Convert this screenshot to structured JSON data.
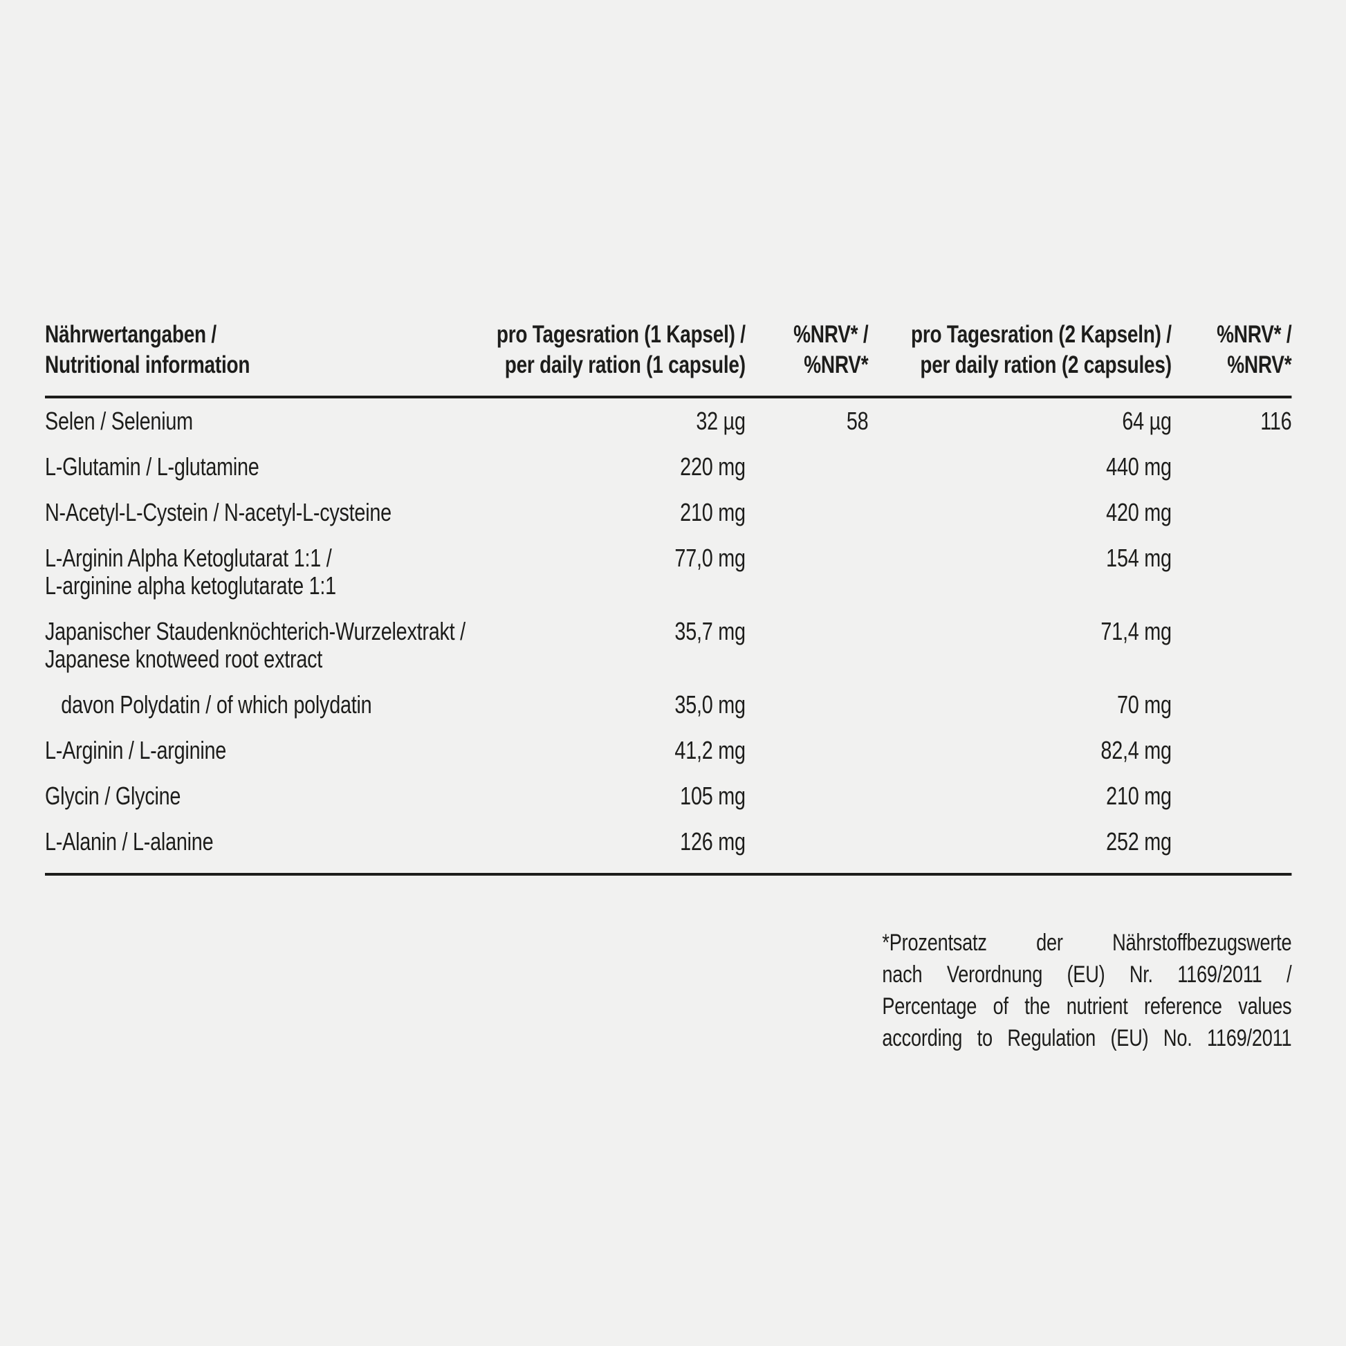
{
  "page": {
    "background_color": "#f1f1f0",
    "text_color": "#1d1d1b"
  },
  "table": {
    "header": {
      "col1": [
        "Nährwertangaben /",
        "Nutritional information"
      ],
      "col2": [
        "pro Tagesration (1 Kapsel) /",
        "per daily ration (1 capsule)"
      ],
      "col3": [
        "%NRV* /",
        "%NRV*"
      ],
      "col4": [
        "pro Tagesration (2 Kapseln) /",
        "per daily ration (2 capsules)"
      ],
      "col5": [
        "%NRV* /",
        "%NRV*"
      ]
    },
    "rows": [
      {
        "label_line1": "Selen / Selenium",
        "label_line2": "",
        "per1": "32 µg",
        "nrv1": "58",
        "per2": "64 µg",
        "nrv2": "116"
      },
      {
        "label_line1": "L-Glutamin / L-glutamine",
        "label_line2": "",
        "per1": "220 mg",
        "nrv1": "",
        "per2": "440 mg",
        "nrv2": ""
      },
      {
        "label_line1": "N-Acetyl-L-Cystein / N-acetyl-L-cysteine",
        "label_line2": "",
        "per1": "210 mg",
        "nrv1": "",
        "per2": "420 mg",
        "nrv2": ""
      },
      {
        "label_line1": "L-Arginin Alpha Ketoglutarat 1:1 /",
        "label_line2": "L-arginine alpha ketoglutarate 1:1",
        "per1": "77,0 mg",
        "nrv1": "",
        "per2": "154 mg",
        "nrv2": ""
      },
      {
        "label_line1": "Japanischer Staudenknöchterich-Wurzelextrakt /",
        "label_line2": "Japanese knotweed root extract",
        "per1": "35,7 mg",
        "nrv1": "",
        "per2": "71,4 mg",
        "nrv2": ""
      },
      {
        "label_line1": "davon Polydatin / of which polydatin",
        "label_line2": "",
        "per1": "35,0 mg",
        "nrv1": "",
        "per2": "70 mg",
        "nrv2": ""
      },
      {
        "label_line1": "L-Arginin / L-arginine",
        "label_line2": "",
        "per1": "41,2 mg",
        "nrv1": "",
        "per2": "82,4 mg",
        "nrv2": ""
      },
      {
        "label_line1": "Glycin / Glycine",
        "label_line2": "",
        "per1": "105 mg",
        "nrv1": "",
        "per2": "210 mg",
        "nrv2": ""
      },
      {
        "label_line1": "L-Alanin / L-alanine",
        "label_line2": "",
        "per1": "126 mg",
        "nrv1": "",
        "per2": "252 mg",
        "nrv2": ""
      }
    ]
  },
  "footnote": {
    "line1": "*Prozentsatz der Nährstoffbezugswerte",
    "line2": "nach Verordnung (EU) Nr. 1169/2011 /",
    "line3": "Percentage of the nutrient reference values",
    "line4": "according to Regulation (EU) No. 1169/2011"
  }
}
